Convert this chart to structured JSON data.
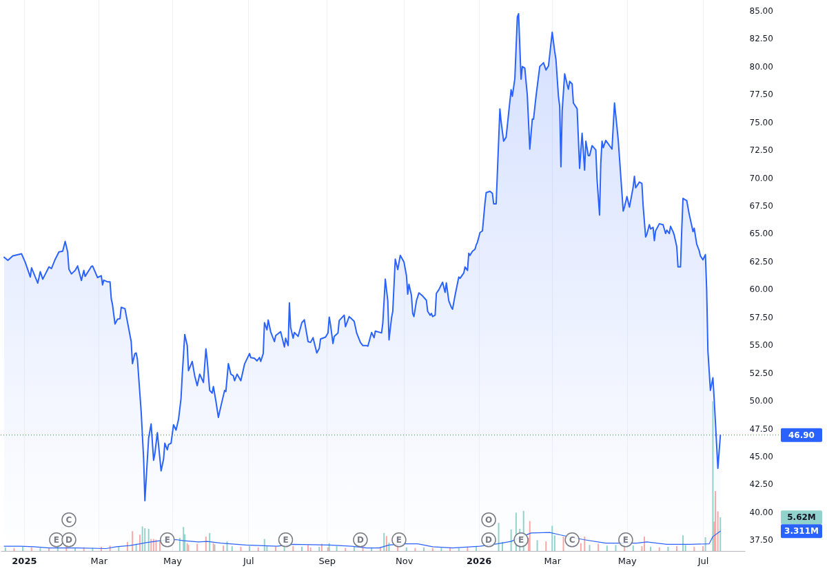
{
  "chart_data": {
    "type": "area",
    "series": [
      {
        "color": "#2962ff",
        "x": [
          "2024-12-17",
          "2024-12-20",
          "2024-12-24",
          "2024-12-31",
          "2025-01-03",
          "2025-01-07",
          "2025-01-08",
          "2025-01-13",
          "2025-01-15",
          "2025-01-17",
          "2025-01-22",
          "2025-01-24",
          "2025-01-27",
          "2025-01-30",
          "2025-02-02",
          "2025-02-04",
          "2025-02-06",
          "2025-02-07",
          "2025-02-09",
          "2025-02-12",
          "2025-02-14",
          "2025-02-17",
          "2025-02-19",
          "2025-02-20",
          "2025-02-25",
          "2025-02-26",
          "2025-03-02",
          "2025-03-05",
          "2025-03-06",
          "2025-03-07",
          "2025-03-10",
          "2025-03-12",
          "2025-03-13",
          "2025-03-14",
          "2025-03-16",
          "2025-03-18",
          "2025-03-20",
          "2025-03-21",
          "2025-03-24",
          "2025-03-26",
          "2025-03-29",
          "2025-03-30",
          "2025-04-01",
          "2025-04-02",
          "2025-04-03",
          "2025-04-06",
          "2025-04-08",
          "2025-04-09",
          "2025-04-12",
          "2025-04-14",
          "2025-04-16",
          "2025-04-17",
          "2025-04-19",
          "2025-04-22",
          "2025-04-24",
          "2025-04-25",
          "2025-04-27",
          "2025-04-28",
          "2025-04-30",
          "2025-05-02",
          "2025-05-04",
          "2025-05-06",
          "2025-05-08",
          "2025-05-09",
          "2025-05-11",
          "2025-05-13",
          "2025-05-14",
          "2025-05-17",
          "2025-05-19",
          "2025-05-21",
          "2025-05-23",
          "2025-05-26",
          "2025-05-28",
          "2025-05-29",
          "2025-05-31",
          "2025-06-02",
          "2025-06-03",
          "2025-06-05",
          "2025-06-07",
          "2025-06-09",
          "2025-06-12",
          "2025-06-13",
          "2025-06-15",
          "2025-06-17",
          "2025-06-19",
          "2025-06-20",
          "2025-06-22",
          "2025-06-25",
          "2025-06-28",
          "2025-07-02",
          "2025-07-03",
          "2025-07-06",
          "2025-07-08",
          "2025-07-10",
          "2025-07-11",
          "2025-07-13",
          "2025-07-14",
          "2025-07-16",
          "2025-07-17",
          "2025-07-19",
          "2025-07-22",
          "2025-07-23",
          "2025-07-27",
          "2025-07-30",
          "2025-07-31",
          "2025-08-02",
          "2025-08-03",
          "2025-08-04",
          "2025-08-06",
          "2025-08-07",
          "2025-08-10",
          "2025-08-13",
          "2025-08-15",
          "2025-08-16",
          "2025-08-18",
          "2025-08-20",
          "2025-08-22",
          "2025-08-25",
          "2025-08-27",
          "2025-08-28",
          "2025-09-01",
          "2025-09-03",
          "2025-09-04",
          "2025-09-05",
          "2025-09-07",
          "2025-09-08",
          "2025-09-11",
          "2025-09-12",
          "2025-09-16",
          "2025-09-17",
          "2025-09-20",
          "2025-09-24",
          "2025-09-26",
          "2025-09-29",
          "2025-10-01",
          "2025-10-04",
          "2025-10-05",
          "2025-10-08",
          "2025-10-10",
          "2025-10-11",
          "2025-10-16",
          "2025-10-17",
          "2025-10-19",
          "2025-10-21",
          "2025-10-22",
          "2025-10-24",
          "2025-10-25",
          "2025-10-27",
          "2025-10-29",
          "2025-10-31",
          "2025-11-03",
          "2025-11-05",
          "2025-11-06",
          "2025-11-07",
          "2025-11-09",
          "2025-11-10",
          "2025-11-11",
          "2025-11-13",
          "2025-11-15",
          "2025-11-18",
          "2025-11-21",
          "2025-11-22",
          "2025-11-24",
          "2025-11-25",
          "2025-11-26",
          "2025-11-28",
          "2025-11-29",
          "2025-12-01",
          "2025-12-04",
          "2025-12-06",
          "2025-12-07",
          "2025-12-09",
          "2025-12-11",
          "2025-12-12",
          "2025-12-14",
          "2025-12-17",
          "2025-12-18",
          "2025-12-21",
          "2025-12-22",
          "2025-12-24",
          "2025-12-25",
          "2025-12-26",
          "2025-12-28",
          "2025-12-30",
          "2025-12-31",
          "2026-01-01",
          "2026-01-03",
          "2026-01-05",
          "2026-01-07",
          "2026-01-08",
          "2026-01-11",
          "2026-01-13",
          "2026-01-14",
          "2026-01-16",
          "2026-01-19",
          "2026-01-20",
          "2026-01-22",
          "2026-01-24",
          "2026-01-28",
          "2026-01-29",
          "2026-01-31",
          "2026-02-02",
          "2026-02-03",
          "2026-02-05",
          "2026-02-06",
          "2026-02-08",
          "2026-02-10",
          "2026-02-12",
          "2026-02-14",
          "2026-02-15",
          "2026-02-17",
          "2026-02-20",
          "2026-02-23",
          "2026-02-25",
          "2026-02-27",
          "2026-03-02",
          "2026-03-04",
          "2026-03-05",
          "2026-03-07",
          "2026-03-08",
          "2026-03-09",
          "2026-03-10",
          "2026-03-12",
          "2026-03-14",
          "2026-03-15",
          "2026-03-16",
          "2026-03-18",
          "2026-03-19",
          "2026-03-22",
          "2026-03-24",
          "2026-03-26",
          "2026-03-28",
          "2026-03-29",
          "2026-03-31",
          "2026-04-01",
          "2026-04-03",
          "2026-04-06",
          "2026-04-07",
          "2026-04-09",
          "2026-04-10",
          "2026-04-11",
          "2026-04-12",
          "2026-04-14",
          "2026-04-19",
          "2026-04-21",
          "2026-04-23",
          "2026-04-24",
          "2026-04-28",
          "2026-04-29",
          "2026-05-01",
          "2026-05-03",
          "2026-05-04",
          "2026-05-06",
          "2026-05-07",
          "2026-05-08",
          "2026-05-11",
          "2026-05-13",
          "2026-05-14",
          "2026-05-16",
          "2026-05-17",
          "2026-05-19",
          "2026-05-20",
          "2026-05-22",
          "2026-05-23",
          "2026-05-24",
          "2026-05-27",
          "2026-05-30",
          "2026-06-01",
          "2026-06-02",
          "2026-06-04",
          "2026-06-05",
          "2026-06-07",
          "2026-06-08",
          "2026-06-10",
          "2026-06-11",
          "2026-06-13",
          "2026-06-14",
          "2026-06-15",
          "2026-06-17",
          "2026-06-18",
          "2026-06-20",
          "2026-06-22",
          "2026-06-23",
          "2026-06-24",
          "2026-06-26",
          "2026-06-28",
          "2026-06-29",
          "2026-07-01",
          "2026-07-03",
          "2026-07-04",
          "2026-07-05",
          "2026-07-07",
          "2026-07-09",
          "2026-07-10",
          "2026-07-13",
          "2026-07-15"
        ],
        "values": [
          62.86,
          62.58,
          62.99,
          63.17,
          62.39,
          61.09,
          61.91,
          60.54,
          61.57,
          60.89,
          62.0,
          61.85,
          62.68,
          63.34,
          63.4,
          64.28,
          63.34,
          61.8,
          61.37,
          61.68,
          62.08,
          60.78,
          61.68,
          61.14,
          62.03,
          62.08,
          61.04,
          61.2,
          60.38,
          60.8,
          60.66,
          60.66,
          59.14,
          58.6,
          56.87,
          57.3,
          57.35,
          58.37,
          58.25,
          57.06,
          55.29,
          53.32,
          54.22,
          54.27,
          53.7,
          49.01,
          44.75,
          41.01,
          46.64,
          47.9,
          44.64,
          45.23,
          47.12,
          43.69,
          44.75,
          46.17,
          45.58,
          46.06,
          46.17,
          47.83,
          47.35,
          48.3,
          50.19,
          52.32,
          55.93,
          54.93,
          52.68,
          53.51,
          52.22,
          51.33,
          52.37,
          51.62,
          54.64,
          53.63,
          50.91,
          50.67,
          51.26,
          49.96,
          48.49,
          49.49,
          50.91,
          50.8,
          53.32,
          52.37,
          52.22,
          51.78,
          52.37,
          51.78,
          53.27,
          54.22,
          53.86,
          53.79,
          53.56,
          53.86,
          53.51,
          54.22,
          56.99,
          56.35,
          57.23,
          56.17,
          55.29,
          55.83,
          56.18,
          54.81,
          55.6,
          54.93,
          58.77,
          56.58,
          55.6,
          56.11,
          55.76,
          56.99,
          57.25,
          56.58,
          55.29,
          55.22,
          55.64,
          54.27,
          54.69,
          55.52,
          55.69,
          56.07,
          57.49,
          56.83,
          55.12,
          55.76,
          56.07,
          57.18,
          57.66,
          56.63,
          57.54,
          57.11,
          56.07,
          55.22,
          54.93,
          54.93,
          54.88,
          56.11,
          55.64,
          56.23,
          56.07,
          56.94,
          60.9,
          58.95,
          55.45,
          57.42,
          58.01,
          62.7,
          61.75,
          63.03,
          62.43,
          61.21,
          59.55,
          60.43,
          59.43,
          57.82,
          57.54,
          58.95,
          59.67,
          59.38,
          59.0,
          58.01,
          57.66,
          57.82,
          57.54,
          57.66,
          59.62,
          59.95,
          60.62,
          59.71,
          60.56,
          58.95,
          58.37,
          58.2,
          59.43,
          61.09,
          60.97,
          61.45,
          61.99,
          61.68,
          63.22,
          63.03,
          63.4,
          63.57,
          63.97,
          64.22,
          65.07,
          65.23,
          67.71,
          68.66,
          68.78,
          68.59,
          67.66,
          67.66,
          76.17,
          75.01,
          73.28,
          73.64,
          77.9,
          77.31,
          78.89,
          84.41,
          84.72,
          78.84,
          79.98,
          79.84,
          77.42,
          72.57,
          75.25,
          75.25,
          77.31,
          79.98,
          80.32,
          79.67,
          80.03,
          83.06,
          81.33,
          80.62,
          77.31,
          76.43,
          70.98,
          76.01,
          79.32,
          78.37,
          77.94,
          78.65,
          78.42,
          76.71,
          76.19,
          70.84,
          73.99,
          70.68,
          73.28,
          71.98,
          71.98,
          72.88,
          72.5,
          69.85,
          66.65,
          71.31,
          73.28,
          72.69,
          73.35,
          72.57,
          76.71,
          74.53,
          73.4,
          67.01,
          67.36,
          68.31,
          67.36,
          67.95,
          69.18,
          70.13,
          69.09,
          69.61,
          69.49,
          67.48,
          64.68,
          64.93,
          65.78,
          65.4,
          65.54,
          64.35,
          65.23,
          65.87,
          65.78,
          64.99,
          65.3,
          64.99,
          65.64,
          65.16,
          64.83,
          63.81,
          61.99,
          61.99,
          65.35,
          68.15,
          68.0,
          67.95,
          66.72,
          65.71,
          65.16,
          65.47,
          64.04,
          63.45,
          62.98,
          62.63,
          63.1,
          59.97,
          54.46,
          50.91,
          52.04,
          50.19,
          43.92,
          46.9
        ]
      },
      {
        "type": "bar",
        "axis": "y2",
        "color": "#92d2cc",
        "x": [
          "2024-12-18",
          "2025-01-01",
          "2025-01-15",
          "2025-01-29",
          "2025-02-12",
          "2025-02-26",
          "2025-03-19",
          "2025-04-02",
          "2025-04-07",
          "2025-04-09",
          "2025-04-12",
          "2025-05-07",
          "2025-05-10",
          "2025-05-11",
          "2025-05-31",
          "2025-06-04",
          "2025-06-14",
          "2025-06-18",
          "2025-07-02",
          "2025-07-14",
          "2025-07-16",
          "2025-07-30",
          "2025-08-13",
          "2025-08-27",
          "2025-09-04",
          "2025-09-10",
          "2025-09-24",
          "2025-10-08",
          "2025-10-18",
          "2025-10-22",
          "2025-11-05",
          "2025-11-19",
          "2025-12-03",
          "2025-12-17",
          "2025-12-31",
          "2026-01-18",
          "2026-01-21",
          "2026-01-28",
          "2026-02-01",
          "2026-02-04",
          "2026-02-07",
          "2026-02-18",
          "2026-03-02",
          "2026-03-04",
          "2026-04-01",
          "2026-04-15",
          "2026-04-22",
          "2026-05-06",
          "2026-05-20",
          "2026-06-03",
          "2026-06-15",
          "2026-06-17",
          "2026-07-03",
          "2026-07-09",
          "2026-07-15"
        ],
        "values": [
          0.6,
          0.7,
          0.5,
          0.7,
          0.5,
          0.5,
          0.8,
          1.2,
          4.1,
          3.8,
          3.7,
          2.2,
          4.0,
          2.8,
          3.0,
          1.1,
          1.6,
          0.8,
          0.8,
          2.0,
          0.9,
          0.6,
          0.7,
          0.7,
          1.3,
          0.8,
          0.7,
          0.5,
          3.0,
          1.4,
          0.6,
          0.6,
          0.5,
          0.5,
          0.7,
          4.7,
          1.5,
          3.6,
          6.4,
          3.7,
          6.7,
          1.8,
          4.2,
          2.6,
          1.0,
          0.9,
          1.0,
          0.9,
          0.7,
          0.7,
          2.6,
          1.0,
          2.3,
          25.0,
          5.62
        ]
      },
      {
        "type": "bar",
        "axis": "y2",
        "color": "#f7a9a7",
        "x": [
          "2024-12-25",
          "2025-01-08",
          "2025-01-22",
          "2025-02-05",
          "2025-02-19",
          "2025-03-05",
          "2025-03-12",
          "2025-03-26",
          "2025-03-30",
          "2025-04-05",
          "2025-04-14",
          "2025-04-16",
          "2025-04-18",
          "2025-04-21",
          "2025-05-13",
          "2025-05-14",
          "2025-05-21",
          "2025-05-28",
          "2025-06-03",
          "2025-06-11",
          "2025-06-25",
          "2025-07-09",
          "2025-07-23",
          "2025-08-06",
          "2025-08-18",
          "2025-08-20",
          "2025-08-29",
          "2025-09-03",
          "2025-09-17",
          "2025-10-01",
          "2025-10-15",
          "2025-10-20",
          "2025-10-29",
          "2025-11-12",
          "2025-11-26",
          "2025-12-10",
          "2025-12-24",
          "2026-02-11",
          "2026-02-12",
          "2026-02-25",
          "2026-03-11",
          "2026-03-25",
          "2026-03-28",
          "2026-04-08",
          "2026-04-29",
          "2026-05-13",
          "2026-05-15",
          "2026-05-27",
          "2026-06-10",
          "2026-06-24",
          "2026-07-01",
          "2026-07-10",
          "2026-07-11",
          "2026-07-13"
        ],
        "values": [
          0.5,
          0.6,
          0.6,
          0.9,
          0.6,
          0.7,
          0.9,
          1.5,
          3.3,
          2.7,
          2.0,
          2.0,
          1.9,
          1.6,
          1.3,
          1.0,
          1.2,
          2.4,
          1.3,
          0.9,
          0.7,
          0.6,
          0.7,
          0.8,
          1.0,
          0.6,
          1.2,
          0.6,
          0.5,
          0.6,
          0.6,
          2.5,
          0.8,
          0.5,
          0.5,
          0.6,
          0.6,
          2.2,
          5.0,
          1.6,
          2.4,
          1.3,
          2.4,
          1.2,
          0.8,
          0.8,
          2.4,
          0.6,
          0.8,
          0.7,
          0.8,
          4.9,
          10.0,
          6.6
        ]
      },
      {
        "type": "line",
        "axis": "y2",
        "color": "#2962ff",
        "x": [
          "2024-12-17",
          "2024-12-30",
          "2025-01-10",
          "2025-01-22",
          "2025-02-14",
          "2025-03-09",
          "2025-03-17",
          "2025-03-28",
          "2025-04-05",
          "2025-04-10",
          "2025-04-21",
          "2025-05-04",
          "2025-05-10",
          "2025-05-22",
          "2025-05-29",
          "2025-06-09",
          "2025-06-29",
          "2025-07-24",
          "2025-08-06",
          "2025-09-04",
          "2025-09-22",
          "2025-10-04",
          "2025-10-14",
          "2025-10-22",
          "2025-11-04",
          "2025-11-14",
          "2025-11-26",
          "2025-12-12",
          "2026-01-03",
          "2026-01-17",
          "2026-01-28",
          "2026-02-13",
          "2026-02-28",
          "2026-03-08",
          "2026-03-27",
          "2026-04-14",
          "2026-04-23",
          "2026-05-09",
          "2026-05-17",
          "2026-06-02",
          "2026-06-21",
          "2026-07-06",
          "2026-07-09",
          "2026-07-15"
        ],
        "values": [
          0.8,
          0.8,
          0.7,
          0.5,
          0.5,
          0.4,
          0.7,
          0.9,
          1.2,
          1.4,
          1.7,
          1.9,
          1.7,
          1.5,
          1.6,
          1.3,
          1.0,
          0.8,
          1.1,
          1.0,
          0.8,
          0.5,
          0.5,
          1.0,
          1.2,
          1.2,
          0.7,
          0.5,
          0.8,
          1.2,
          1.6,
          3.0,
          3.1,
          2.7,
          1.9,
          1.3,
          1.3,
          1.3,
          1.5,
          1.1,
          1.1,
          1.2,
          2.4,
          3.311
        ]
      }
    ],
    "xlim": [
      "2024-12-17",
      "2026-08-01"
    ],
    "xticks": [
      {
        "value": "2025-01-02",
        "label": "2025"
      },
      {
        "value": "2025-03-03",
        "label": "Mar"
      },
      {
        "value": "2025-05-01",
        "label": "May"
      },
      {
        "value": "2025-07-01",
        "label": "Jul"
      },
      {
        "value": "2025-09-02",
        "label": "Sep"
      },
      {
        "value": "2025-11-03",
        "label": "Nov"
      },
      {
        "value": "2026-01-02",
        "label": "2026"
      },
      {
        "value": "2026-03-02",
        "label": "Mar"
      },
      {
        "value": "2026-05-01",
        "label": "May"
      },
      {
        "value": "2026-07-01",
        "label": "Jul"
      }
    ],
    "ylim": [
      36.5,
      85.95
    ],
    "yticks": [
      {
        "value": 37.5,
        "label": "37.50"
      },
      {
        "value": 40,
        "label": "40.00"
      },
      {
        "value": 42.5,
        "label": "42.50"
      },
      {
        "value": 45,
        "label": "45.00"
      },
      {
        "value": 47.5,
        "label": "47.50"
      },
      {
        "value": 50,
        "label": "50.00"
      },
      {
        "value": 52.5,
        "label": "52.50"
      },
      {
        "value": 55,
        "label": "55.00"
      },
      {
        "value": 57.5,
        "label": "57.50"
      },
      {
        "value": 60,
        "label": "60.00"
      },
      {
        "value": 62.5,
        "label": "62.50"
      },
      {
        "value": 65,
        "label": "65.00"
      },
      {
        "value": 67.5,
        "label": "67.50"
      },
      {
        "value": 70,
        "label": "70.00"
      },
      {
        "value": 72.5,
        "label": "72.50"
      },
      {
        "value": 75,
        "label": "75.00"
      },
      {
        "value": 77.5,
        "label": "77.50"
      },
      {
        "value": 80,
        "label": "80.00"
      },
      {
        "value": 82.5,
        "label": "82.50"
      },
      {
        "value": 85,
        "label": "85.00"
      }
    ],
    "y2lim": [
      0,
      92
    ],
    "y2ticks": [
      {
        "value": 5.62,
        "label": "5.62M"
      },
      {
        "value": 3.311,
        "label": "3.311M"
      }
    ],
    "ref_lines": [
      {
        "axis": "y",
        "value": 46.9,
        "label": "46.90",
        "color": "#2962ff",
        "line_style": "dotted"
      }
    ],
    "annotations": [
      {
        "text": "E",
        "x": "2025-01-28",
        "y": 37.5
      },
      {
        "text": "D",
        "x": "2025-02-07",
        "y": 37.5
      },
      {
        "text": "C",
        "x": "2025-02-07",
        "y": 39.3
      },
      {
        "text": "E",
        "x": "2025-04-27",
        "y": 37.5
      },
      {
        "text": "E",
        "x": "2025-07-31",
        "y": 37.5
      },
      {
        "text": "D",
        "x": "2025-09-29",
        "y": 37.5
      },
      {
        "text": "E",
        "x": "2025-10-30",
        "y": 37.5
      },
      {
        "text": "D",
        "x": "2026-01-10",
        "y": 37.5
      },
      {
        "text": "O",
        "x": "2026-01-10",
        "y": 39.3
      },
      {
        "text": "E",
        "x": "2026-02-05",
        "y": 37.5
      },
      {
        "text": "C",
        "x": "2026-03-18",
        "y": 37.5
      },
      {
        "text": "E",
        "x": "2026-04-30",
        "y": 37.5
      }
    ],
    "grid": "x"
  }
}
